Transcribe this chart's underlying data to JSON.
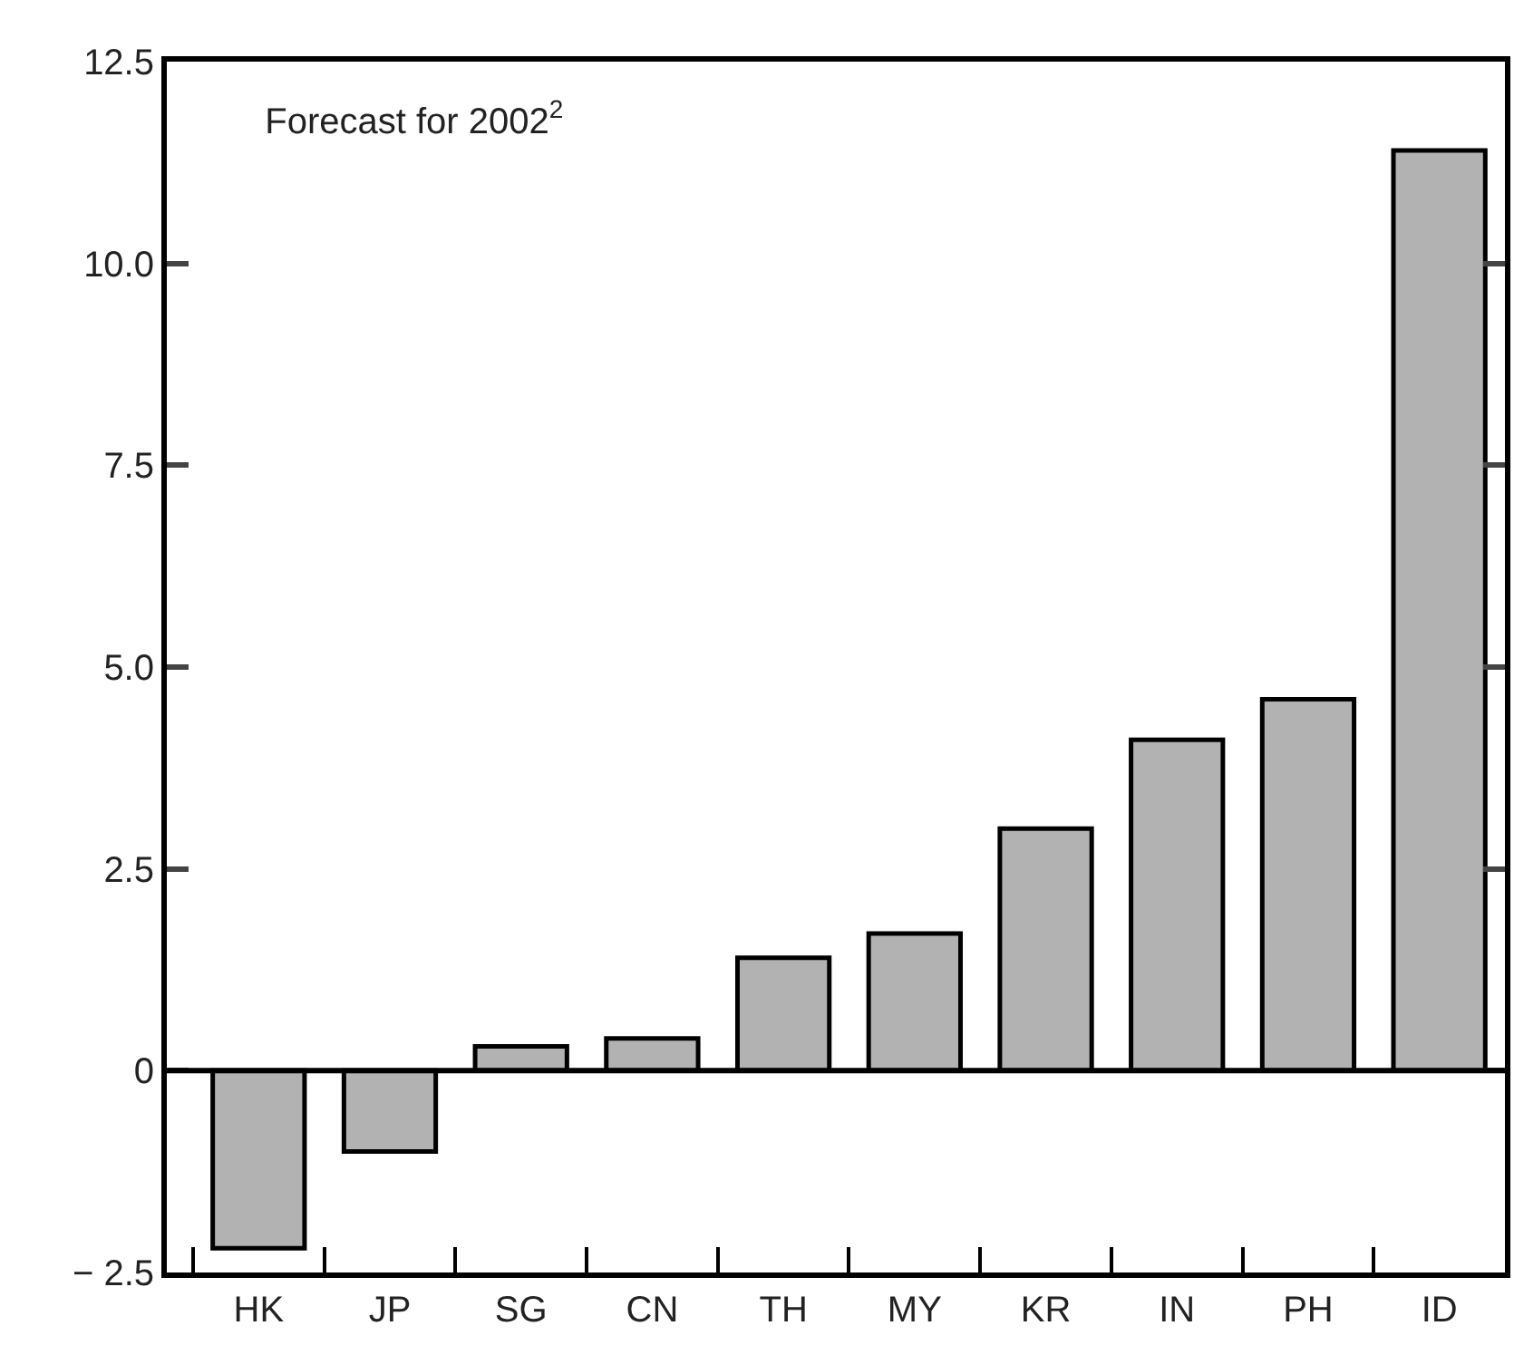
{
  "chart_data": {
    "type": "bar",
    "title": "Forecast for 2002$^{2}$",
    "categories": [
      "HK",
      "JP",
      "SG",
      "CN",
      "TH",
      "MY",
      "KR",
      "IN",
      "PH",
      "ID"
    ],
    "values": [
      -2.2,
      -1.0,
      0.3,
      0.4,
      1.4,
      1.7,
      3.0,
      4.1,
      4.6,
      11.4
    ],
    "color": "#b2b2b2",
    "ylim": [
      -2.5,
      12.5
    ],
    "yticks": [
      {
        "value": -2.5,
        "label": "− 2.5"
      },
      0,
      {
        "value": 2.5,
        "label": "2.5"
      },
      {
        "value": 5,
        "label": "5.0"
      },
      {
        "value": 7.5,
        "label": "7.5"
      },
      {
        "value": 10,
        "label": "10.0"
      },
      {
        "value": 12.5,
        "label": "12.5"
      }
    ],
    "ref_lines": [
      {
        "axis": "y",
        "value": 0,
        "color": "#000000"
      }
    ],
    "legend": false
  }
}
